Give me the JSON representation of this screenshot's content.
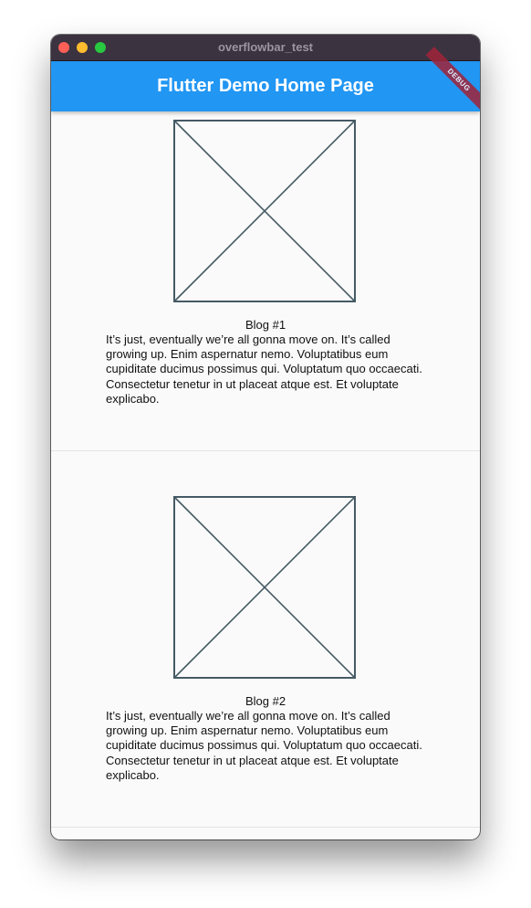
{
  "window": {
    "title": "overflowbar_test"
  },
  "appbar": {
    "title": "Flutter Demo Home Page",
    "debug_banner": "DEBUG"
  },
  "colors": {
    "appbar": "#2196f3",
    "placeholder_stroke": "#455a64",
    "background": "#fafafa"
  },
  "blogs": [
    {
      "title": "Blog #1",
      "body": "It’s just, eventually we’re all gonna move on. It’s called growing up. Enim aspernatur nemo. Voluptatibus eum cupiditate ducimus possimus qui. Voluptatum quo occaecati. Consectetur tenetur in ut placeat atque est. Et voluptate explicabo."
    },
    {
      "title": "Blog #2",
      "body": "It’s just, eventually we’re all gonna move on. It’s called growing up. Enim aspernatur nemo. Voluptatibus eum cupiditate ducimus possimus qui. Voluptatum quo occaecati. Consectetur tenetur in ut placeat atque est. Et voluptate explicabo."
    }
  ]
}
